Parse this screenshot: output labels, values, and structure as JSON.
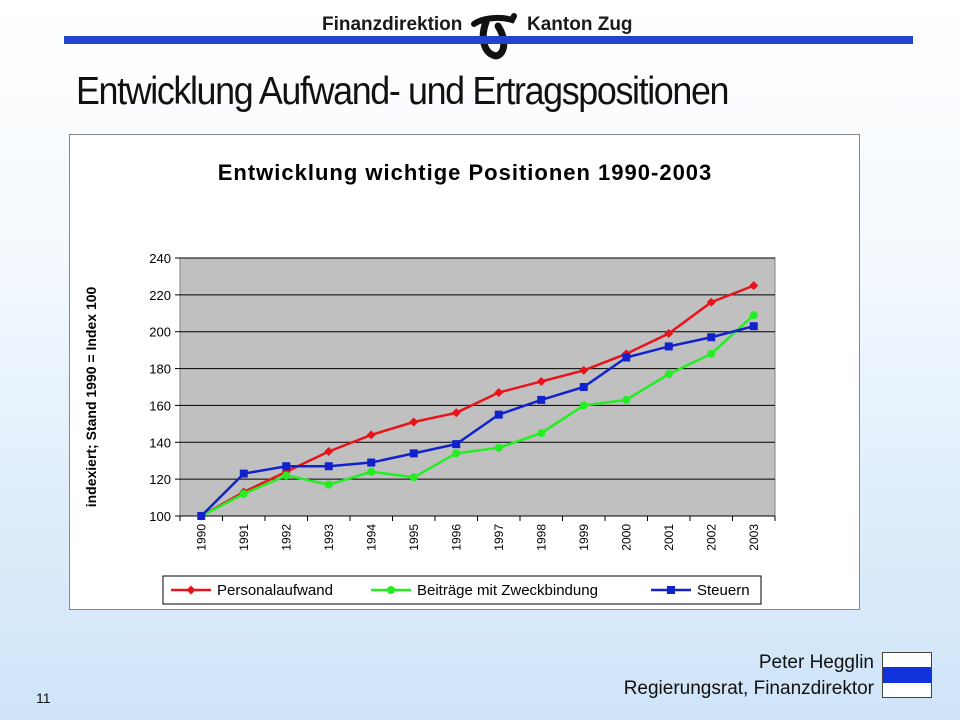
{
  "header": {
    "left": "Finanzdirektion",
    "right": "Kanton Zug"
  },
  "page_title": "Entwicklung Aufwand- und Ertragspositionen",
  "footer": {
    "name": "Peter Hegglin",
    "role": "Regierungsrat, Finanzdirektor",
    "page_number": "11"
  },
  "colors": {
    "header_line": "#2244cc",
    "plot_bg": "#c0c0c0"
  },
  "chart_data": {
    "type": "line",
    "title": "Entwicklung wichtige Positionen 1990-2003",
    "ylabel": "indexiert; Stand 1990 = Index 100",
    "xlabel": "",
    "ylim": [
      100,
      240
    ],
    "yticks": [
      100,
      120,
      140,
      160,
      180,
      200,
      220,
      240
    ],
    "grid": true,
    "legend": "bottom",
    "categories": [
      "1990",
      "1991",
      "1992",
      "1993",
      "1994",
      "1995",
      "1996",
      "1997",
      "1998",
      "1999",
      "2000",
      "2001",
      "2002",
      "2003"
    ],
    "series": [
      {
        "name": "Personalaufwand",
        "color": "#e8141b",
        "marker": "diamond",
        "values": [
          100,
          113,
          124,
          135,
          144,
          151,
          156,
          167,
          173,
          179,
          188,
          199,
          216,
          225
        ]
      },
      {
        "name": "Beiträge mit Zweckbindung",
        "color": "#22ee22",
        "marker": "circle",
        "values": [
          100,
          112,
          122,
          117,
          124,
          121,
          134,
          137,
          145,
          160,
          163,
          177,
          188,
          209
        ]
      },
      {
        "name": "Steuern",
        "color": "#1122cc",
        "marker": "square",
        "values": [
          100,
          123,
          127,
          127,
          129,
          134,
          139,
          155,
          163,
          170,
          186,
          192,
          197,
          203
        ]
      }
    ]
  }
}
